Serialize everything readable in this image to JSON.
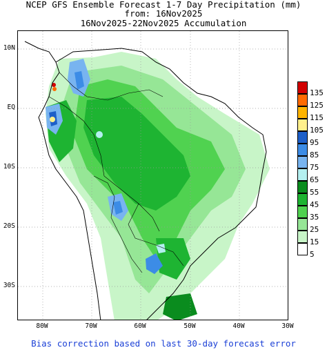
{
  "title": {
    "line1": "NCEP GFS Ensemble Forecast 1-7 Day Precipitation (mm)",
    "line2": "from: 16Nov2025",
    "line3": "16Nov2025-22Nov2025 Accumulation"
  },
  "axes": {
    "lat_labels": [
      "10N",
      "EQ",
      "10S",
      "20S",
      "30S"
    ],
    "lon_labels": [
      "80W",
      "70W",
      "60W",
      "50W",
      "40W",
      "30W"
    ],
    "lon_range": [
      -85,
      -30
    ],
    "lat_range": [
      -36,
      13
    ]
  },
  "legend": {
    "labels": [
      "135",
      "125",
      "115",
      "105",
      "95",
      "85",
      "75",
      "65",
      "55",
      "45",
      "35",
      "25",
      "15",
      "5"
    ],
    "colors": [
      "#d20000",
      "#ff6a00",
      "#ffb400",
      "#fff08c",
      "#1e5fc8",
      "#3c8ce6",
      "#78b4f0",
      "#b4f0f0",
      "#0a8c1e",
      "#1eb432",
      "#50d250",
      "#96e696",
      "#c8f5c8",
      "#ffffff"
    ]
  },
  "footer": "Bias correction based on last 30-day forecast error"
}
